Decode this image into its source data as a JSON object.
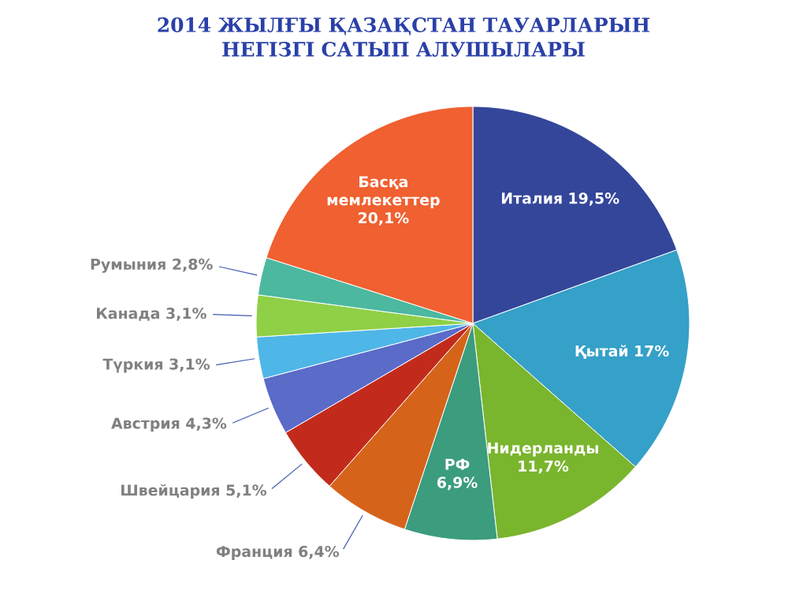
{
  "chart_data": {
    "type": "pie",
    "title": "2014 ЖЫЛҒЫ ҚАЗАҚСТАН ТАУАРЛАРЫН НЕГІЗГІ САТЫП АЛУШЫЛАРЫ",
    "categories": [
      "Италия",
      "Қытай",
      "Нидерланды",
      "РФ",
      "Франция",
      "Швейцария",
      "Австрия",
      "Түркия",
      "Канада",
      "Румыния",
      "Басқа мемлекеттер"
    ],
    "values": [
      19.5,
      17,
      11.7,
      6.9,
      6.4,
      5.1,
      4.3,
      3.1,
      3.1,
      2.8,
      20.1
    ],
    "value_labels": [
      "19,5%",
      "17%",
      "11,7%",
      "6,9%",
      "6,4%",
      "5,1%",
      "4,3%",
      "3,1%",
      "3,1%",
      "2,8%",
      "20,1%"
    ],
    "colors": [
      "#34469a",
      "#35a0c8",
      "#7ab52e",
      "#3b9c7e",
      "#d5641a",
      "#c22b1c",
      "#5a6bc8",
      "#4fb6e8",
      "#8fd046",
      "#4cb8a0",
      "#f06030"
    ]
  }
}
